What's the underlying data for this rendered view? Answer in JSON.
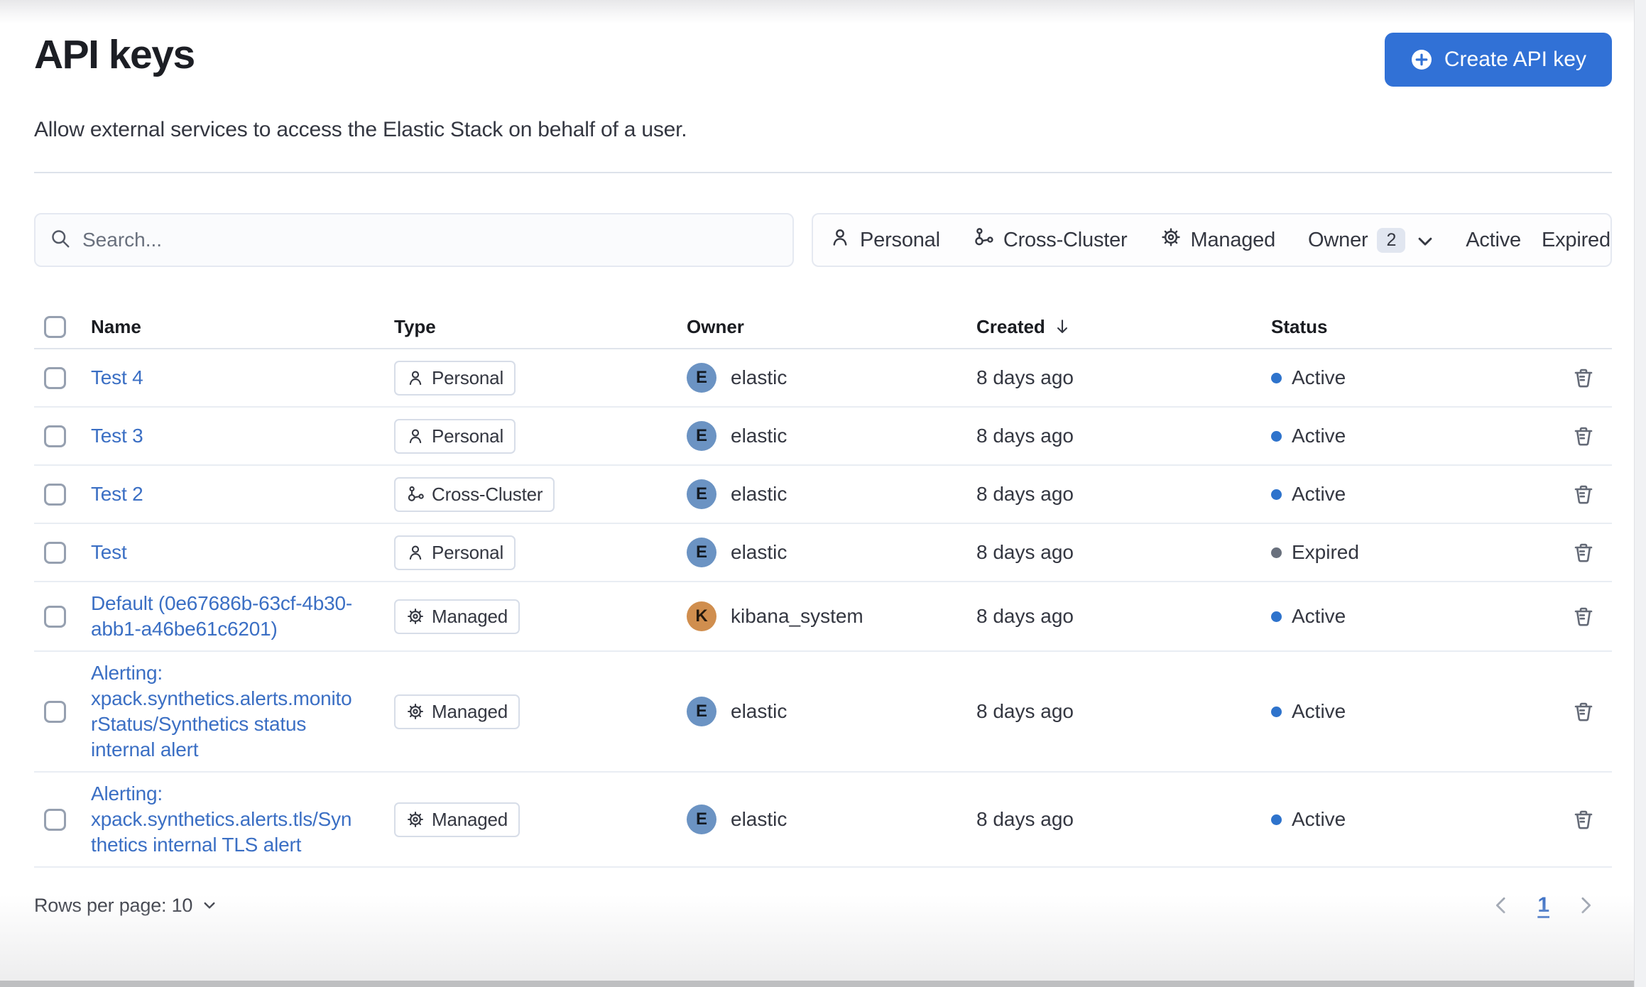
{
  "page": {
    "title": "API keys",
    "subtitle": "Allow external services to access the Elastic Stack on behalf of a user.",
    "create_button_label": "Create API key"
  },
  "search": {
    "placeholder": "Search..."
  },
  "filters": {
    "type_filters": [
      {
        "label": "Personal",
        "icon": "user-icon"
      },
      {
        "label": "Cross-Cluster",
        "icon": "cluster-icon"
      },
      {
        "label": "Managed",
        "icon": "gear-icon"
      }
    ],
    "owner_filter": {
      "label": "Owner",
      "count": "2"
    },
    "status_filters": [
      {
        "label": "Active"
      },
      {
        "label": "Expired"
      }
    ]
  },
  "table": {
    "columns": {
      "name": "Name",
      "type": "Type",
      "owner": "Owner",
      "created": "Created",
      "status": "Status"
    },
    "sorted_column": "Created",
    "sort_direction": "descending",
    "rows": [
      {
        "name": "Test 4",
        "type": "Personal",
        "type_icon": "user-icon",
        "owner": "elastic",
        "owner_initial": "E",
        "owner_color": "#6b93c3",
        "created": "8 days ago",
        "status": "Active",
        "status_dot": "#2e73cc"
      },
      {
        "name": "Test 3",
        "type": "Personal",
        "type_icon": "user-icon",
        "owner": "elastic",
        "owner_initial": "E",
        "owner_color": "#6b93c3",
        "created": "8 days ago",
        "status": "Active",
        "status_dot": "#2e73cc"
      },
      {
        "name": "Test 2",
        "type": "Cross-Cluster",
        "type_icon": "cluster-icon",
        "owner": "elastic",
        "owner_initial": "E",
        "owner_color": "#6b93c3",
        "created": "8 days ago",
        "status": "Active",
        "status_dot": "#2e73cc"
      },
      {
        "name": "Test",
        "type": "Personal",
        "type_icon": "user-icon",
        "owner": "elastic",
        "owner_initial": "E",
        "owner_color": "#6b93c3",
        "created": "8 days ago",
        "status": "Expired",
        "status_dot": "#69707d"
      },
      {
        "name": "Default (0e67686b-63cf-4b30-abb1-a46be61c6201)",
        "type": "Managed",
        "type_icon": "gear-icon",
        "owner": "kibana_system",
        "owner_initial": "K",
        "owner_color": "#d08e4e",
        "created": "8 days ago",
        "status": "Active",
        "status_dot": "#2e73cc"
      },
      {
        "name": "Alerting: xpack.synthetics.alerts.monitorStatus/Synthetics status internal alert",
        "type": "Managed",
        "type_icon": "gear-icon",
        "owner": "elastic",
        "owner_initial": "E",
        "owner_color": "#6b93c3",
        "created": "8 days ago",
        "status": "Active",
        "status_dot": "#2e73cc"
      },
      {
        "name": "Alerting: xpack.synthetics.alerts.tls/Synthetics internal TLS alert",
        "type": "Managed",
        "type_icon": "gear-icon",
        "owner": "elastic",
        "owner_initial": "E",
        "owner_color": "#6b93c3",
        "created": "8 days ago",
        "status": "Active",
        "status_dot": "#2e73cc"
      }
    ]
  },
  "pagination": {
    "rows_per_page_label": "Rows per page: 10",
    "current_page": "1"
  },
  "colors": {
    "accent": "#3171d6",
    "link": "#3b6fc4",
    "active_dot": "#2e73cc",
    "expired_dot": "#69707d"
  }
}
